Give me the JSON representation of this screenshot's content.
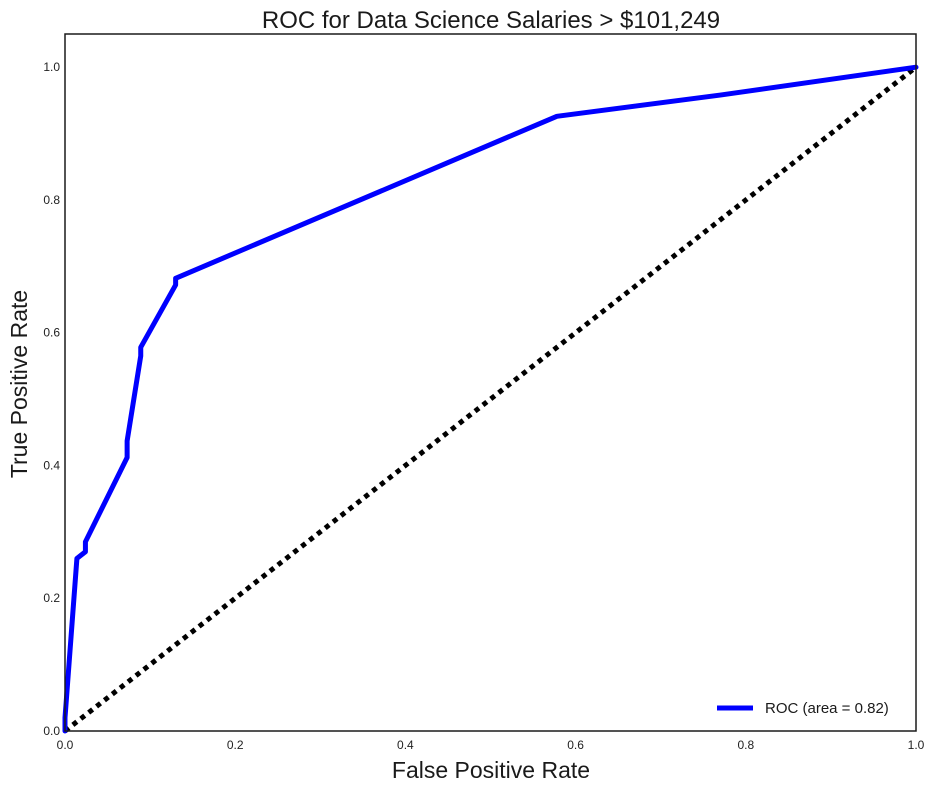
{
  "chart_data": {
    "type": "line",
    "title": "ROC for Data Science Salaries > $101,249",
    "xlabel": "False Positive Rate",
    "ylabel": "True Positive Rate",
    "xlim": [
      0,
      1
    ],
    "ylim": [
      0,
      1.05
    ],
    "x_ticks": [
      "0.0",
      "0.2",
      "0.4",
      "0.6",
      "0.8",
      "1.0"
    ],
    "y_ticks": [
      "0.0",
      "0.2",
      "0.4",
      "0.6",
      "0.8",
      "1.0"
    ],
    "grid": false,
    "legend_position": "lower-right",
    "series": [
      {
        "name": "ROC (area = 0.82)",
        "color": "#0000ff",
        "style": "solid",
        "x": [
          0.0,
          0.0,
          0.014,
          0.024,
          0.024,
          0.073,
          0.073,
          0.089,
          0.089,
          0.13,
          0.13,
          0.578,
          0.77,
          1.0
        ],
        "y": [
          0.0,
          0.02,
          0.26,
          0.27,
          0.285,
          0.412,
          0.437,
          0.565,
          0.578,
          0.672,
          0.682,
          0.926,
          0.958,
          1.0
        ]
      },
      {
        "name": "",
        "color": "#000000",
        "style": "dotted",
        "x": [
          0,
          1
        ],
        "y": [
          0,
          1
        ]
      }
    ]
  }
}
